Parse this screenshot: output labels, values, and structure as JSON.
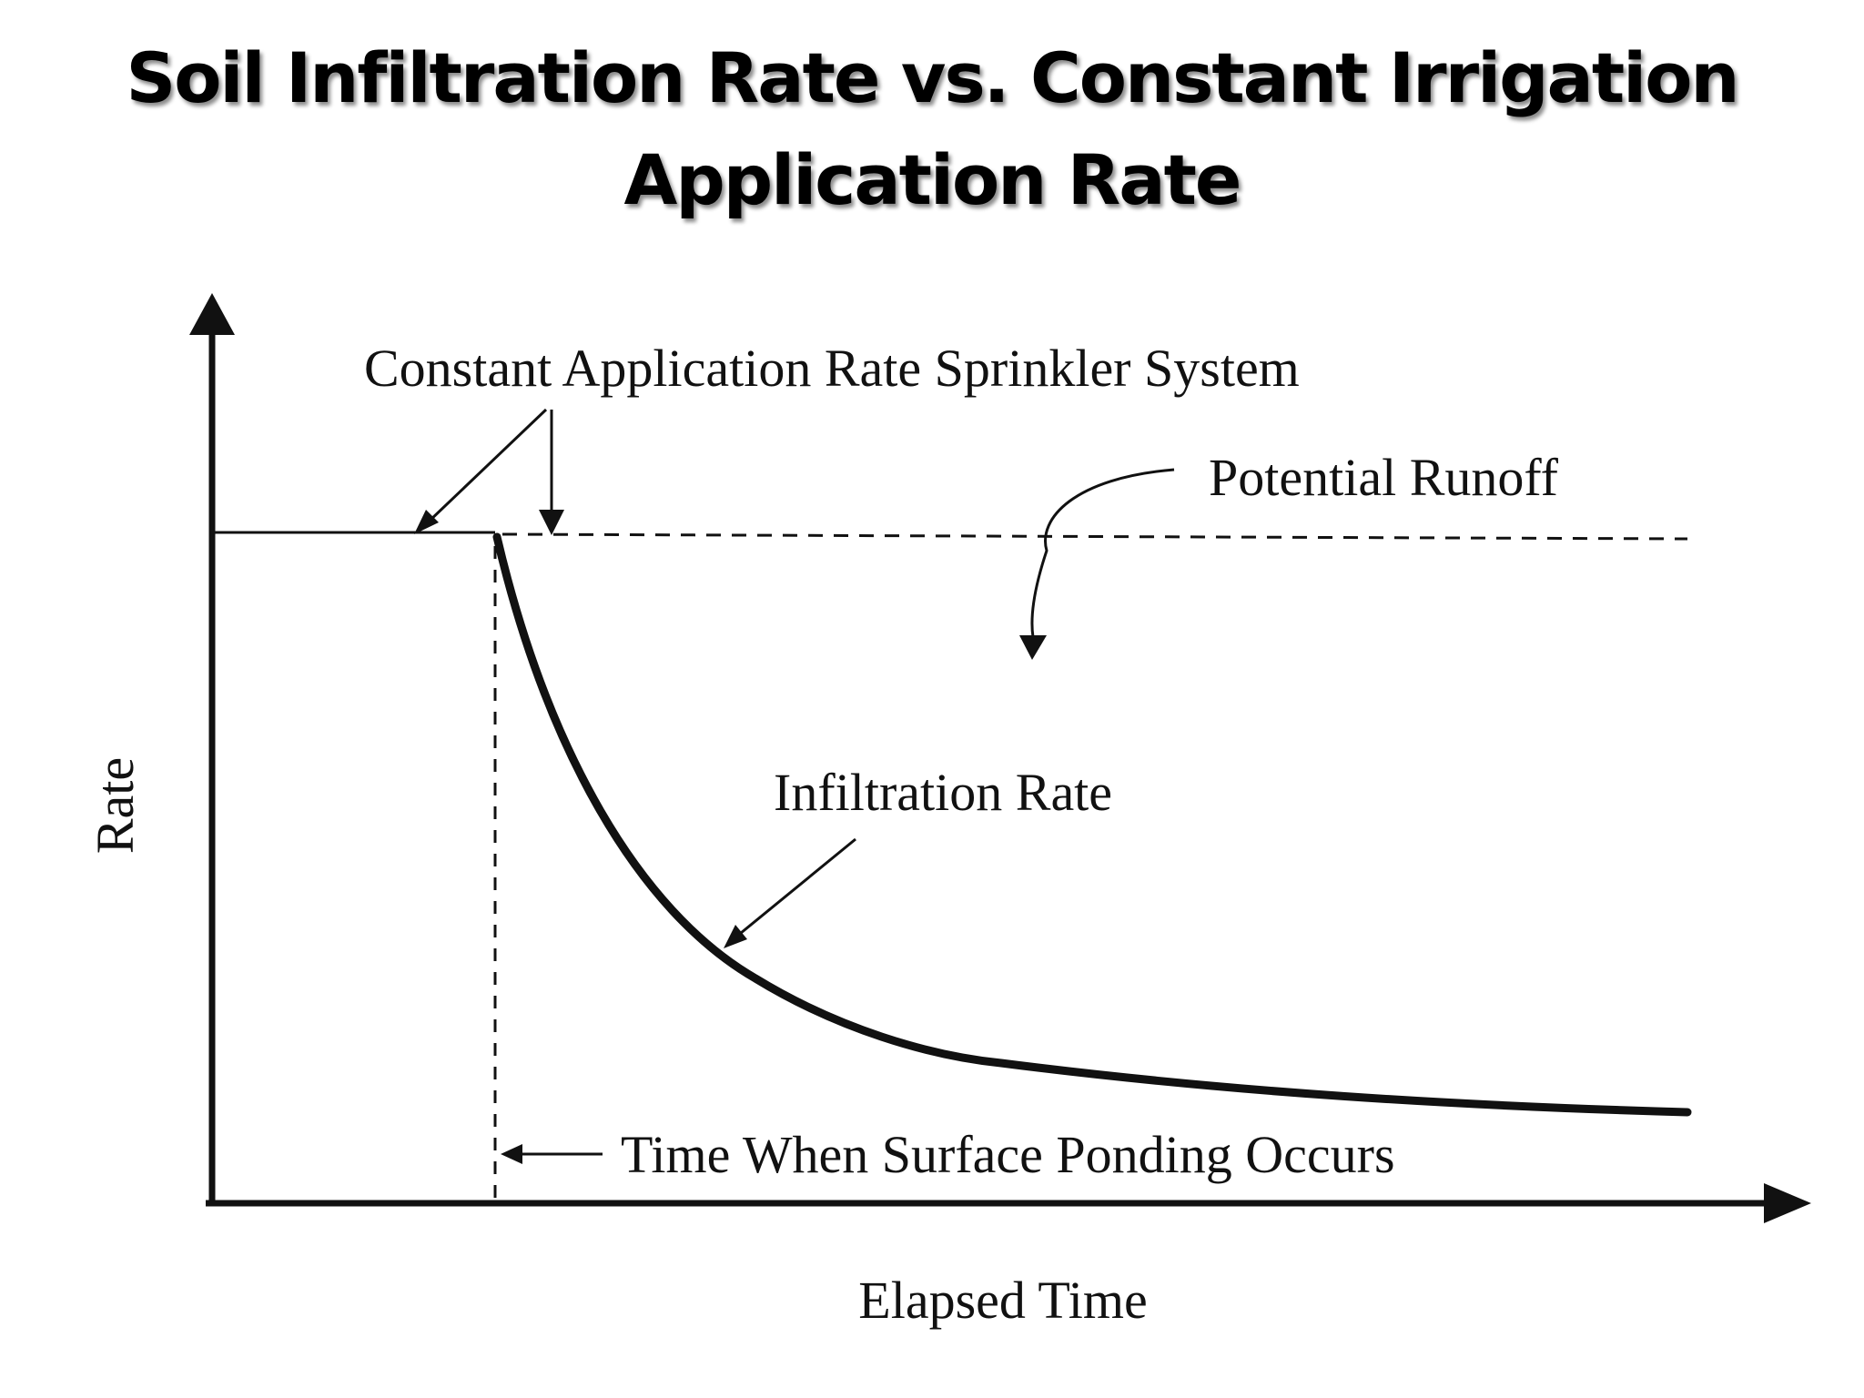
{
  "title": {
    "line1": "Soil Infiltration Rate vs. Constant Irrigation",
    "line2": "Application Rate"
  },
  "axes": {
    "y_label": "Rate",
    "x_label": "Elapsed Time"
  },
  "annotations": {
    "application_rate": "Constant Application Rate Sprinkler System",
    "potential_runoff": "Potential Runoff",
    "infiltration_rate": "Infiltration Rate",
    "ponding_time": "Time When Surface Ponding Occurs"
  }
}
